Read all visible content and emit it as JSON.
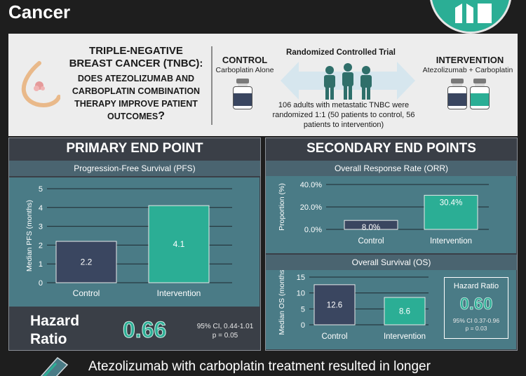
{
  "header": {
    "title": "Cancer",
    "logo_text": ""
  },
  "intro": {
    "question_title": "TRIPLE-NEGATIVE BREAST CANCER (TNBC):",
    "question_sub": "DOES ATEZOLIZUMAB AND CARBOPLATIN COMBINATION THERAPY IMPROVE PATIENT OUTCOMES",
    "question_mark": "?",
    "control": {
      "title": "CONTROL",
      "subtitle": "Carboplatin Alone"
    },
    "trial": {
      "title": "Randomized Controlled Trial",
      "description": "106 adults with metastatic TNBC were randomized 1:1 (50 patients to control, 56 patients to intervention)"
    },
    "intervention": {
      "title": "INTERVENTION",
      "subtitle": "Atezolizumab + Carboplatin"
    }
  },
  "primary": {
    "heading": "PRIMARY END POINT",
    "chart_title": "Progression-Free Survival (PFS)",
    "hazard": {
      "label_line1": "Hazard",
      "label_line2": "Ratio",
      "value": "0.66",
      "ci": "95% CI, 0.44-1.01",
      "p": "p = 0.05"
    }
  },
  "secondary": {
    "heading": "SECONDARY END POINTS",
    "orr_title": "Overall Response Rate (ORR)",
    "os_title": "Overall Survival (OS)",
    "hazard": {
      "title": "Hazard Ratio",
      "value": "0.60",
      "ci": "95% CI 0.37-0.96",
      "p": "p = 0.03"
    }
  },
  "footer": {
    "text": "Atezolizumab with carboplatin treatment resulted in longer"
  },
  "colors": {
    "control": "#3a4660",
    "intervention": "#2bae95",
    "accent": "#2bae95",
    "panel": "#3a3f47",
    "chart_bg": "#4a7b86"
  },
  "chart_data": [
    {
      "type": "bar",
      "title": "Progression-Free Survival (PFS)",
      "categories": [
        "Control",
        "Intervention"
      ],
      "values": [
        2.2,
        4.1
      ],
      "value_labels": [
        "2.2",
        "4.1"
      ],
      "ylabel": "Median PFS (months)",
      "yticks": [
        "0",
        "1",
        "2",
        "3",
        "4",
        "5"
      ],
      "ylim": [
        0,
        5
      ],
      "grid": true
    },
    {
      "type": "bar",
      "title": "Overall Response Rate (ORR)",
      "categories": [
        "Control",
        "Intervention"
      ],
      "values": [
        8.0,
        30.4
      ],
      "value_labels": [
        "8.0%",
        "30.4%"
      ],
      "ylabel": "Proportion (%)",
      "yticks": [
        "0.0%",
        "20.0%",
        "40.0%"
      ],
      "ylim": [
        0,
        40
      ],
      "grid": true
    },
    {
      "type": "bar",
      "title": "Overall Survival (OS)",
      "categories": [
        "Control",
        "Intervention"
      ],
      "values": [
        12.6,
        8.6
      ],
      "value_labels": [
        "12.6",
        "8.6"
      ],
      "ylabel": "Median OS (months)",
      "yticks": [
        "0",
        "5",
        "10",
        "15"
      ],
      "ylim": [
        0,
        15
      ],
      "grid": true
    }
  ]
}
